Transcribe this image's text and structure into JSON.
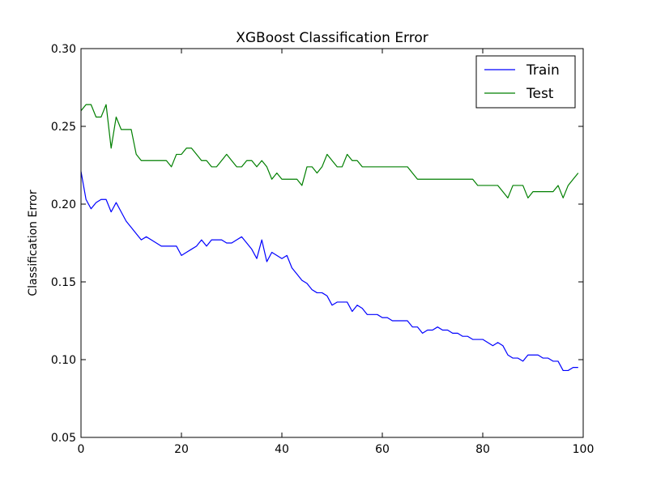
{
  "chart_data": {
    "type": "line",
    "title": "XGBoost Classification Error",
    "xlabel": "",
    "ylabel": "Classification Error",
    "xlim": [
      0,
      100
    ],
    "ylim": [
      0.05,
      0.3
    ],
    "xticks": [
      0,
      20,
      40,
      60,
      80,
      100
    ],
    "yticks": [
      0.05,
      0.1,
      0.15,
      0.2,
      0.25,
      0.3
    ],
    "xtick_labels": [
      "0",
      "20",
      "40",
      "60",
      "80",
      "100"
    ],
    "ytick_labels": [
      "0.05",
      "0.10",
      "0.15",
      "0.20",
      "0.25",
      "0.30"
    ],
    "grid": false,
    "legend_position": "top-right",
    "series": [
      {
        "name": "Train",
        "color": "#0000ff",
        "x": [
          0,
          1,
          2,
          3,
          4,
          5,
          6,
          7,
          8,
          9,
          10,
          11,
          12,
          13,
          14,
          15,
          16,
          17,
          18,
          19,
          20,
          21,
          22,
          23,
          24,
          25,
          26,
          27,
          28,
          29,
          30,
          31,
          32,
          33,
          34,
          35,
          36,
          37,
          38,
          39,
          40,
          41,
          42,
          43,
          44,
          45,
          46,
          47,
          48,
          49,
          50,
          51,
          52,
          53,
          54,
          55,
          56,
          57,
          58,
          59,
          60,
          61,
          62,
          63,
          64,
          65,
          66,
          67,
          68,
          69,
          70,
          71,
          72,
          73,
          74,
          75,
          76,
          77,
          78,
          79,
          80,
          81,
          82,
          83,
          84,
          85,
          86,
          87,
          88,
          89,
          90,
          91,
          92,
          93,
          94,
          95,
          96,
          97,
          98,
          99
        ],
        "values": [
          0.221,
          0.203,
          0.197,
          0.201,
          0.203,
          0.203,
          0.195,
          0.201,
          0.195,
          0.189,
          0.185,
          0.181,
          0.177,
          0.179,
          0.177,
          0.175,
          0.173,
          0.173,
          0.173,
          0.173,
          0.167,
          0.169,
          0.171,
          0.173,
          0.177,
          0.173,
          0.177,
          0.177,
          0.177,
          0.175,
          0.175,
          0.177,
          0.179,
          0.175,
          0.171,
          0.165,
          0.177,
          0.163,
          0.169,
          0.167,
          0.165,
          0.167,
          0.159,
          0.155,
          0.151,
          0.149,
          0.145,
          0.143,
          0.143,
          0.141,
          0.135,
          0.137,
          0.137,
          0.137,
          0.131,
          0.135,
          0.133,
          0.129,
          0.129,
          0.129,
          0.127,
          0.127,
          0.125,
          0.125,
          0.125,
          0.125,
          0.121,
          0.121,
          0.117,
          0.119,
          0.119,
          0.121,
          0.119,
          0.119,
          0.117,
          0.117,
          0.115,
          0.115,
          0.113,
          0.113,
          0.113,
          0.111,
          0.109,
          0.111,
          0.109,
          0.103,
          0.101,
          0.101,
          0.099,
          0.103,
          0.103,
          0.103,
          0.101,
          0.101,
          0.099,
          0.099,
          0.093,
          0.093,
          0.095,
          0.095
        ]
      },
      {
        "name": "Test",
        "color": "#007f00",
        "x": [
          0,
          1,
          2,
          3,
          4,
          5,
          6,
          7,
          8,
          9,
          10,
          11,
          12,
          13,
          14,
          15,
          16,
          17,
          18,
          19,
          20,
          21,
          22,
          23,
          24,
          25,
          26,
          27,
          28,
          29,
          30,
          31,
          32,
          33,
          34,
          35,
          36,
          37,
          38,
          39,
          40,
          41,
          42,
          43,
          44,
          45,
          46,
          47,
          48,
          49,
          50,
          51,
          52,
          53,
          54,
          55,
          56,
          57,
          58,
          59,
          60,
          61,
          62,
          63,
          64,
          65,
          66,
          67,
          68,
          69,
          70,
          71,
          72,
          73,
          74,
          75,
          76,
          77,
          78,
          79,
          80,
          81,
          82,
          83,
          84,
          85,
          86,
          87,
          88,
          89,
          90,
          91,
          92,
          93,
          94,
          95,
          96,
          97,
          98,
          99
        ],
        "values": [
          0.26,
          0.264,
          0.264,
          0.256,
          0.256,
          0.264,
          0.236,
          0.256,
          0.248,
          0.248,
          0.248,
          0.232,
          0.228,
          0.228,
          0.228,
          0.228,
          0.228,
          0.228,
          0.224,
          0.232,
          0.232,
          0.236,
          0.236,
          0.232,
          0.228,
          0.228,
          0.224,
          0.224,
          0.228,
          0.232,
          0.228,
          0.224,
          0.224,
          0.228,
          0.228,
          0.224,
          0.228,
          0.224,
          0.216,
          0.22,
          0.216,
          0.216,
          0.216,
          0.216,
          0.212,
          0.224,
          0.224,
          0.22,
          0.224,
          0.232,
          0.228,
          0.224,
          0.224,
          0.232,
          0.228,
          0.228,
          0.224,
          0.224,
          0.224,
          0.224,
          0.224,
          0.224,
          0.224,
          0.224,
          0.224,
          0.224,
          0.22,
          0.216,
          0.216,
          0.216,
          0.216,
          0.216,
          0.216,
          0.216,
          0.216,
          0.216,
          0.216,
          0.216,
          0.216,
          0.212,
          0.212,
          0.212,
          0.212,
          0.212,
          0.208,
          0.204,
          0.212,
          0.212,
          0.212,
          0.204,
          0.208,
          0.208,
          0.208,
          0.208,
          0.208,
          0.212,
          0.204,
          0.212,
          0.216,
          0.22
        ]
      }
    ]
  }
}
